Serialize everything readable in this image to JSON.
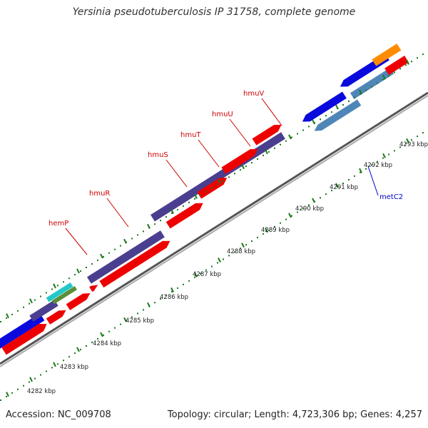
{
  "title": "Yersinia pseudotuberculosis IP 31758, complete genome",
  "footer": {
    "accession": "Accession: NC_009708",
    "summary": "Topology: circular; Length: 4,723,306 bp; Genes: 4,257"
  },
  "ticks": [
    {
      "label": "4282 kbp"
    },
    {
      "label": "4283 kbp"
    },
    {
      "label": "4284 kbp"
    },
    {
      "label": "4285 kbp"
    },
    {
      "label": "4286 kbp"
    },
    {
      "label": "4287 kbp"
    },
    {
      "label": "4288 kbp"
    },
    {
      "label": "4289 kbp"
    },
    {
      "label": "4290 kbp"
    },
    {
      "label": "4291 kbp"
    },
    {
      "label": "4292 kbp"
    },
    {
      "label": "4293 kbp"
    }
  ],
  "gene_labels": [
    {
      "name": "hemP",
      "color": "#cc0000"
    },
    {
      "name": "hmuR",
      "color": "#cc0000"
    },
    {
      "name": "hmuS",
      "color": "#cc0000"
    },
    {
      "name": "hmuT",
      "color": "#cc0000"
    },
    {
      "name": "hmuU",
      "color": "#cc0000"
    },
    {
      "name": "hmuV",
      "color": "#cc0000"
    },
    {
      "name": "metC2",
      "color": "#0000cc"
    }
  ],
  "colors": {
    "backbone": "#888888",
    "tick_green": "#1a7a1a",
    "cds_red": "#ee0000",
    "cds_purple": "#4a3f8f",
    "cds_blue": "#0a0add",
    "cds_steel": "#4f86b8",
    "cds_orange": "#ff8c00",
    "cds_cyan": "#22c8c8",
    "cds_green": "#5a8f3a"
  }
}
